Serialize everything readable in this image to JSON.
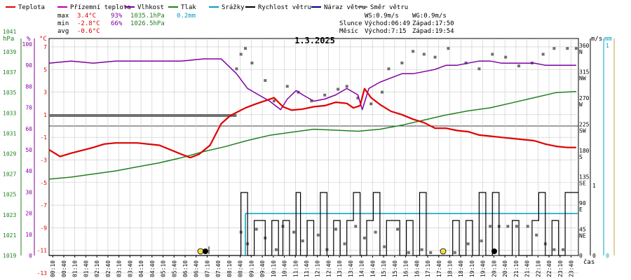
{
  "legend": [
    {
      "label": "Teplota",
      "color": "#e00000"
    },
    {
      "label": "Přízemní teplota",
      "color": "#b000b0"
    },
    {
      "label": "Vlhkost",
      "color": "#8000a0"
    },
    {
      "label": "Tlak",
      "color": "#208020"
    },
    {
      "label": "Srážky",
      "color": "#00a0c0"
    },
    {
      "label": "Rychlost větru",
      "color": "#000000"
    },
    {
      "label": "Náraz větru",
      "color": "#000080"
    },
    {
      "label": "Směr větru",
      "color": "#707070"
    }
  ],
  "stats": {
    "max_label": "max",
    "max_temp": "3.4°C",
    "max_hum": "93%",
    "max_press": "1035.1hPa",
    "max_rain": "0.2mm",
    "min_label": "min",
    "min_temp": "-2.8°C",
    "min_hum": "66%",
    "min_press": "1026.5hPa",
    "avg_label": "avg",
    "avg_temp": "-0.6°C"
  },
  "wind_info": {
    "ws": "WS:0.9m/s",
    "wg": "WG:0.9m/s"
  },
  "sun_info": {
    "label": "Slunce",
    "rise": "Východ:06:49",
    "set": "Západ:17:50"
  },
  "moon_info": {
    "label": "Měsíc",
    "rise": "Východ:7:15",
    "set": "Západ:19:54"
  },
  "colors": {
    "temp": "#e00000",
    "hum": "#8000a0",
    "press": "#208020",
    "rain": "#00a0c0",
    "wind": "#000000",
    "dir": "#707070",
    "axis": "#000000",
    "grid": "#c8c8c8"
  },
  "chart_data": {
    "type": "line",
    "title": "1.3.2025",
    "xlabel": "čas",
    "axis_units": {
      "hpa": "hPa",
      "pct": "%",
      "temp": "°C",
      "ms": "m/s",
      "mm": "mm"
    },
    "x_ticks": [
      "00:10",
      "00:40",
      "01:10",
      "01:40",
      "02:10",
      "02:40",
      "03:10",
      "03:40",
      "04:10",
      "04:40",
      "05:10",
      "05:40",
      "06:10",
      "06:40",
      "07:10",
      "07:40",
      "08:10",
      "08:40",
      "09:10",
      "09:40",
      "10:10",
      "10:40",
      "11:10",
      "11:40",
      "12:10",
      "12:40",
      "13:10",
      "13:40",
      "14:10",
      "14:40",
      "15:10",
      "15:40",
      "16:10",
      "16:40",
      "17:10",
      "17:40",
      "18:10",
      "18:40",
      "19:10",
      "19:40",
      "20:10",
      "20:40",
      "21:10",
      "21:40",
      "22:10",
      "22:40",
      "23:10",
      "23:40"
    ],
    "axes": {
      "pressure": {
        "ticks": [
          "1041",
          "1039",
          "1037",
          "1035",
          "1033",
          "1031",
          "1029",
          "1027",
          "1025",
          "1023",
          "1021",
          "1019"
        ]
      },
      "humidity": {
        "ticks": [
          "100",
          "90",
          "80",
          "70",
          "60",
          "50",
          "40",
          "30",
          "20",
          "10",
          "0"
        ]
      },
      "temperature": {
        "ticks": [
          "7",
          "5",
          "3",
          "1",
          "-1",
          "-3",
          "-5",
          "-7",
          "-9",
          "-11",
          "-13"
        ]
      },
      "wind_dir": {
        "ticks": [
          "360",
          "315",
          "270",
          "225",
          "180",
          "135",
          "90",
          "45",
          "0"
        ],
        "compass": [
          "N",
          "NW",
          "W",
          "SW",
          "S",
          "SE",
          "E",
          "NE"
        ]
      },
      "wind_speed": {
        "ticks": [
          "1",
          "0"
        ]
      },
      "rain": {
        "ticks": [
          "1",
          "0"
        ]
      }
    },
    "series": [
      {
        "key": "temp",
        "name": "Teplota",
        "unit": "°C",
        "hours": [
          0,
          0.5,
          1,
          2,
          2.5,
          3,
          4,
          5,
          6,
          6.4,
          6.8,
          7.3,
          7.8,
          8.2,
          8.6,
          8.9,
          9.3,
          9.6,
          9.9,
          10.2,
          10.6,
          11,
          11.5,
          12,
          12.5,
          13,
          13.5,
          13.8,
          14.1,
          14.3,
          14.6,
          15,
          15.5,
          16,
          16.5,
          17,
          17.5,
          18,
          18.5,
          19,
          19.5,
          20,
          20.5,
          21,
          21.5,
          22,
          22.5,
          23,
          23.5,
          23.9
        ],
        "values": [
          -2.1,
          -2.7,
          -2.4,
          -1.9,
          -1.6,
          -1.5,
          -1.5,
          -1.7,
          -2.5,
          -2.8,
          -2.5,
          -1.7,
          0.2,
          0.9,
          1.3,
          1.6,
          1.9,
          2.1,
          2.3,
          2.5,
          1.7,
          1.4,
          1.5,
          1.7,
          1.8,
          2.1,
          2.0,
          1.6,
          1.8,
          3.3,
          2.5,
          1.9,
          1.3,
          1.0,
          0.6,
          0.3,
          -0.2,
          -0.2,
          -0.4,
          -0.5,
          -0.8,
          -0.9,
          -1.0,
          -1.1,
          -1.2,
          -1.3,
          -1.6,
          -1.8,
          -1.9,
          -1.9
        ]
      },
      {
        "key": "hum",
        "name": "Vlhkost",
        "unit": "%",
        "hours": [
          0,
          1,
          2,
          3,
          4,
          5,
          6,
          7,
          7.8,
          8.1,
          8.5,
          9,
          9.5,
          10,
          10.5,
          10.8,
          11.2,
          11.5,
          12,
          12.5,
          13,
          13.5,
          14,
          14.2,
          14.5,
          15,
          15.5,
          16,
          16.5,
          17,
          17.5,
          18,
          18.5,
          19,
          19.5,
          20,
          20.5,
          21,
          21.5,
          22,
          22.5,
          23,
          23.9
        ],
        "values": [
          91,
          92,
          91,
          92,
          92,
          92,
          92,
          93,
          93,
          90,
          86,
          79,
          76,
          73,
          69,
          74,
          78,
          76,
          73,
          74,
          76,
          79,
          76,
          69,
          79,
          82,
          84,
          86,
          86,
          87,
          88,
          90,
          90,
          91,
          92,
          92,
          91,
          91,
          91,
          91,
          90,
          90,
          90
        ]
      },
      {
        "key": "press",
        "name": "Tlak",
        "unit": "hPa",
        "hours": [
          0,
          1,
          2,
          3,
          4,
          5,
          6,
          7,
          8,
          9,
          10,
          11,
          12,
          13,
          14,
          15,
          16,
          17,
          18,
          19,
          20,
          21,
          22,
          23,
          23.9
        ],
        "values": [
          1026.5,
          1026.7,
          1027.0,
          1027.3,
          1027.7,
          1028.1,
          1028.6,
          1029.2,
          1029.7,
          1030.3,
          1030.8,
          1031.1,
          1031.4,
          1031.3,
          1031.2,
          1031.4,
          1031.8,
          1032.3,
          1032.8,
          1033.2,
          1033.5,
          1034.0,
          1034.5,
          1035.0,
          1035.1
        ]
      },
      {
        "key": "rain",
        "name": "Srážky",
        "unit": "mm",
        "hours": [
          8.9,
          24
        ],
        "values": [
          0.2,
          0.2
        ]
      },
      {
        "key": "wind",
        "name": "Rychlost větru",
        "unit": "m/s",
        "hours": [
          0,
          8.6,
          8.7,
          8.8,
          9.0,
          9.3,
          9.6,
          9.8,
          10.1,
          10.4,
          10.6,
          10.9,
          11.2,
          11.4,
          11.7,
          12.0,
          12.3,
          12.6,
          12.9,
          13.2,
          13.5,
          13.8,
          14.1,
          14.4,
          14.7,
          15.0,
          15.3,
          15.6,
          15.9,
          16.2,
          16.5,
          16.8,
          17.1,
          17.4,
          17.7,
          18.0,
          18.3,
          18.6,
          18.9,
          19.2,
          19.5,
          19.8,
          20.1,
          20.4,
          20.7,
          21.0,
          21.3,
          21.6,
          21.9,
          22.2,
          22.5,
          22.8,
          23.1,
          23.4,
          23.7,
          24
        ],
        "values": [
          0,
          0,
          0.9,
          0.9,
          0.0,
          0.5,
          0.5,
          0.0,
          0.5,
          0.0,
          0.5,
          0.0,
          0.9,
          0.0,
          0.5,
          0.0,
          0.9,
          0.0,
          0.5,
          0.0,
          0.5,
          0.9,
          0.0,
          0.5,
          0.9,
          0.0,
          0.5,
          0.5,
          0.0,
          0.5,
          0.0,
          0.9,
          0.0,
          0.0,
          0.0,
          0.0,
          0.5,
          0.0,
          0.5,
          0.0,
          0.9,
          0.0,
          0.9,
          0.0,
          0.0,
          0.5,
          0.0,
          0.0,
          0.5,
          0.9,
          0.0,
          0.5,
          0.0,
          0.9,
          0.9,
          0.9
        ]
      },
      {
        "key": "dir",
        "name": "Směr větru",
        "unit": "°",
        "hours": [
          0,
          8.5,
          8.7,
          8.9,
          9.2,
          9.8,
          10.2,
          10.8,
          11.3,
          11.9,
          12.5,
          13.1,
          13.5,
          14.0,
          14.6,
          15.1,
          15.4,
          16.0,
          16.5,
          17.0,
          17.5,
          18.1,
          18.9,
          19.5,
          20.1,
          20.7,
          21.3,
          21.9,
          22.4,
          22.9,
          23.5,
          23.9
        ],
        "values": [
          240,
          320,
          345,
          355,
          330,
          300,
          265,
          290,
          280,
          265,
          275,
          285,
          290,
          270,
          260,
          280,
          320,
          330,
          350,
          345,
          340,
          355,
          330,
          320,
          345,
          340,
          325,
          330,
          345,
          355,
          355,
          355
        ]
      },
      {
        "key": "dir_low",
        "name": "Směr větru",
        "unit": "°",
        "hours": [
          8.7,
          9.0,
          9.4,
          9.8,
          10.3,
          10.6,
          11.1,
          11.5,
          12.2,
          12.6,
          13.0,
          13.4,
          13.9,
          14.3,
          14.8,
          15.2,
          15.8,
          16.3,
          16.9,
          17.3,
          18.4,
          19.0,
          19.6,
          20.0,
          20.4,
          20.8,
          21.2,
          21.7,
          22.1,
          22.5,
          22.9,
          23.3
        ],
        "values": [
          40,
          20,
          45,
          30,
          10,
          50,
          40,
          25,
          35,
          10,
          45,
          20,
          50,
          30,
          40,
          15,
          45,
          5,
          10,
          5,
          5,
          20,
          25,
          50,
          50,
          50,
          50,
          50,
          35,
          20,
          10,
          10
        ]
      }
    ]
  }
}
